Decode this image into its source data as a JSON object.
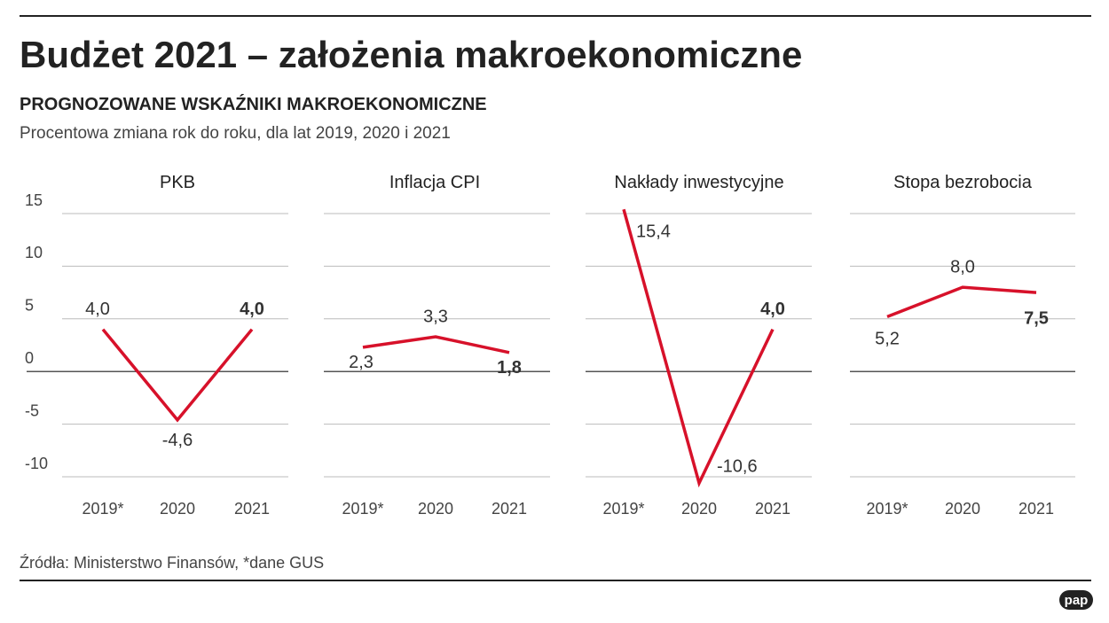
{
  "title": "Budżet 2021 – założenia makroekonomiczne",
  "subtitle": "PROGNOZOWANE WSKAŹNIKI MAKROEKONOMICZNE",
  "description": "Procentowa zmiana rok do roku, dla lat 2019, 2020 i 2021",
  "source": "Źródła: Ministerstwo Finansów, *dane GUS",
  "logo": "pap",
  "chart_data": [
    {
      "type": "line",
      "title": "PKB",
      "categories": [
        "2019*",
        "2020",
        "2021"
      ],
      "values": [
        4.0,
        -4.6,
        4.0
      ],
      "value_labels": [
        "4,0",
        "-4,6",
        "4,0"
      ],
      "color": "#d7112a",
      "ylim": [
        -10,
        15
      ],
      "yticks": [
        -10,
        -5,
        0,
        5,
        10,
        15
      ]
    },
    {
      "type": "line",
      "title": "Inflacja CPI",
      "categories": [
        "2019*",
        "2020",
        "2021"
      ],
      "values": [
        2.3,
        3.3,
        1.8
      ],
      "value_labels": [
        "2,3",
        "3,3",
        "1,8"
      ],
      "color": "#d7112a",
      "ylim": [
        -10,
        15
      ],
      "yticks": [
        -10,
        -5,
        0,
        5,
        10,
        15
      ]
    },
    {
      "type": "line",
      "title": "Nakłady inwestycyjne",
      "categories": [
        "2019*",
        "2020",
        "2021"
      ],
      "values": [
        15.4,
        -10.6,
        4.0
      ],
      "value_labels": [
        "15,4",
        "-10,6",
        "4,0"
      ],
      "color": "#d7112a",
      "ylim": [
        -10,
        15
      ],
      "yticks": [
        -10,
        -5,
        0,
        5,
        10,
        15
      ]
    },
    {
      "type": "line",
      "title": "Stopa bezrobocia",
      "categories": [
        "2019*",
        "2020",
        "2021"
      ],
      "values": [
        5.2,
        8.0,
        7.5
      ],
      "value_labels": [
        "5,2",
        "8,0",
        "7,5"
      ],
      "color": "#d7112a",
      "ylim": [
        -10,
        15
      ],
      "yticks": [
        -10,
        -5,
        0,
        5,
        10,
        15
      ]
    }
  ]
}
